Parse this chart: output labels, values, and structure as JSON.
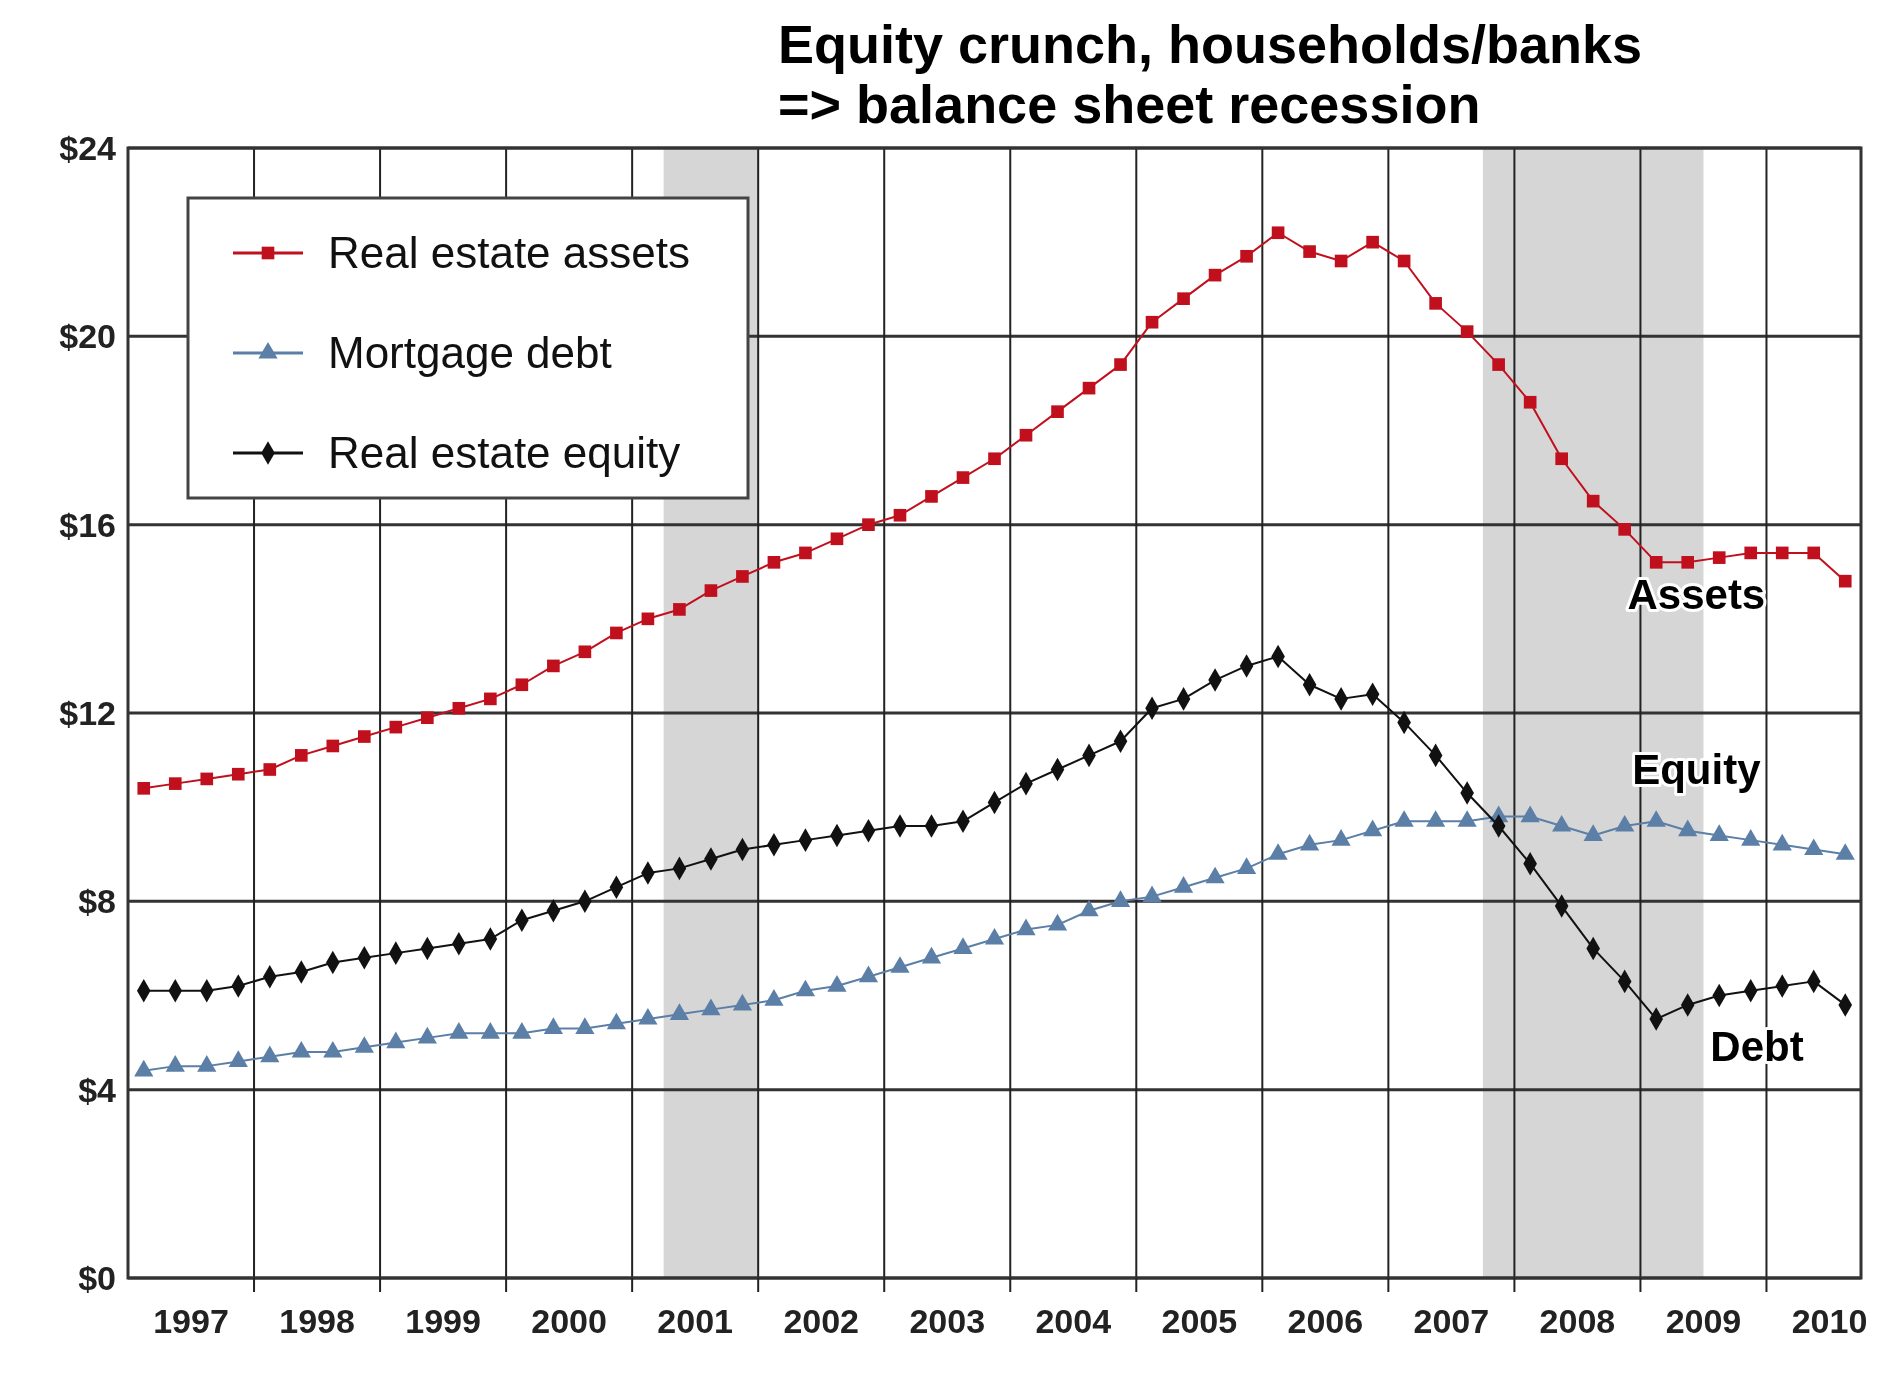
{
  "chart_data": {
    "type": "line",
    "title": "Equity crunch, households/banks\n=> balance sheet recession",
    "x": [
      1997.125,
      1997.375,
      1997.625,
      1997.875,
      1998.125,
      1998.375,
      1998.625,
      1998.875,
      1999.125,
      1999.375,
      1999.625,
      1999.875,
      2000.125,
      2000.375,
      2000.625,
      2000.875,
      2001.125,
      2001.375,
      2001.625,
      2001.875,
      2002.125,
      2002.375,
      2002.625,
      2002.875,
      2003.125,
      2003.375,
      2003.625,
      2003.875,
      2004.125,
      2004.375,
      2004.625,
      2004.875,
      2005.125,
      2005.375,
      2005.625,
      2005.875,
      2006.125,
      2006.375,
      2006.625,
      2006.875,
      2007.125,
      2007.375,
      2007.625,
      2007.875,
      2008.125,
      2008.375,
      2008.625,
      2008.875,
      2009.125,
      2009.375,
      2009.625,
      2009.875,
      2010.125,
      2010.375,
      2010.625
    ],
    "series": [
      {
        "name": "Real estate assets",
        "color": "#c0101e",
        "marker": "square",
        "values": [
          10.4,
          10.5,
          10.6,
          10.7,
          10.8,
          11.1,
          11.3,
          11.5,
          11.7,
          11.9,
          12.1,
          12.3,
          12.6,
          13.0,
          13.3,
          13.7,
          14.0,
          14.2,
          14.6,
          14.9,
          15.2,
          15.4,
          15.7,
          16.0,
          16.2,
          16.6,
          17.0,
          17.4,
          17.9,
          18.4,
          18.9,
          19.4,
          20.3,
          20.8,
          21.3,
          21.7,
          22.2,
          21.8,
          21.6,
          22.0,
          21.6,
          20.7,
          20.1,
          19.4,
          18.6,
          17.4,
          16.5,
          15.9,
          15.2,
          15.2,
          15.3,
          15.4,
          15.4,
          15.4,
          14.8
        ]
      },
      {
        "name": "Mortgage debt",
        "color": "#5b7fa6",
        "marker": "triangle",
        "values": [
          4.4,
          4.5,
          4.5,
          4.6,
          4.7,
          4.8,
          4.8,
          4.9,
          5.0,
          5.1,
          5.2,
          5.2,
          5.2,
          5.3,
          5.3,
          5.4,
          5.5,
          5.6,
          5.7,
          5.8,
          5.9,
          6.1,
          6.2,
          6.4,
          6.6,
          6.8,
          7.0,
          7.2,
          7.4,
          7.5,
          7.8,
          8.0,
          8.1,
          8.3,
          8.5,
          8.7,
          9.0,
          9.2,
          9.3,
          9.5,
          9.7,
          9.7,
          9.7,
          9.8,
          9.8,
          9.6,
          9.4,
          9.6,
          9.7,
          9.5,
          9.4,
          9.3,
          9.2,
          9.1,
          9.0
        ]
      },
      {
        "name": "Real estate equity",
        "color": "#111111",
        "marker": "diamond",
        "values": [
          6.1,
          6.1,
          6.1,
          6.2,
          6.4,
          6.5,
          6.7,
          6.8,
          6.9,
          7.0,
          7.1,
          7.2,
          7.6,
          7.8,
          8.0,
          8.3,
          8.6,
          8.7,
          8.9,
          9.1,
          9.2,
          9.3,
          9.4,
          9.5,
          9.6,
          9.6,
          9.7,
          10.1,
          10.5,
          10.8,
          11.1,
          11.4,
          12.1,
          12.3,
          12.7,
          13.0,
          13.2,
          12.6,
          12.3,
          12.4,
          11.8,
          11.1,
          10.3,
          9.6,
          8.8,
          7.9,
          7.0,
          6.3,
          5.5,
          5.8,
          6.0,
          6.1,
          6.2,
          6.3,
          5.8
        ]
      }
    ],
    "xlim": [
      1997,
      2010.75
    ],
    "xticks": [
      {
        "value": 1997.5,
        "label": "1997"
      },
      {
        "value": 1998,
        "label": null
      },
      {
        "value": 1998.5,
        "label": "1998"
      },
      {
        "value": 1999,
        "label": null
      },
      {
        "value": 1999.5,
        "label": "1999"
      },
      {
        "value": 2000,
        "label": null
      },
      {
        "value": 2000.5,
        "label": "2000"
      },
      {
        "value": 2001,
        "label": null
      },
      {
        "value": 2001.5,
        "label": "2001"
      },
      {
        "value": 2002,
        "label": null
      },
      {
        "value": 2002.5,
        "label": "2002"
      },
      {
        "value": 2003,
        "label": null
      },
      {
        "value": 2003.5,
        "label": "2003"
      },
      {
        "value": 2004,
        "label": null
      },
      {
        "value": 2004.5,
        "label": "2004"
      },
      {
        "value": 2005,
        "label": null
      },
      {
        "value": 2005.5,
        "label": "2005"
      },
      {
        "value": 2006,
        "label": null
      },
      {
        "value": 2006.5,
        "label": "2006"
      },
      {
        "value": 2007,
        "label": null
      },
      {
        "value": 2007.5,
        "label": "2007"
      },
      {
        "value": 2008,
        "label": null
      },
      {
        "value": 2008.5,
        "label": "2008"
      },
      {
        "value": 2009,
        "label": null
      },
      {
        "value": 2009.5,
        "label": "2009"
      },
      {
        "value": 2010,
        "label": null
      },
      {
        "value": 2010.5,
        "label": "2010"
      }
    ],
    "ylim": [
      0,
      24
    ],
    "yticks": [
      {
        "value": 0,
        "label": "$0"
      },
      {
        "value": 4,
        "label": "$4"
      },
      {
        "value": 8,
        "label": "$8"
      },
      {
        "value": 12,
        "label": "$12"
      },
      {
        "value": 16,
        "label": "$16"
      },
      {
        "value": 20,
        "label": "$20"
      },
      {
        "value": 24,
        "label": "$24"
      }
    ],
    "bands": [
      {
        "axis": "x",
        "from": 2001.25,
        "to": 2002,
        "color": "#d6d6d6"
      },
      {
        "axis": "x",
        "from": 2007.75,
        "to": 2009.5,
        "color": "#d6d6d6"
      }
    ],
    "annotations": [
      "Assets",
      "Equity",
      "Debt"
    ],
    "grid": true,
    "legend": "top left",
    "line_style": "solid"
  }
}
